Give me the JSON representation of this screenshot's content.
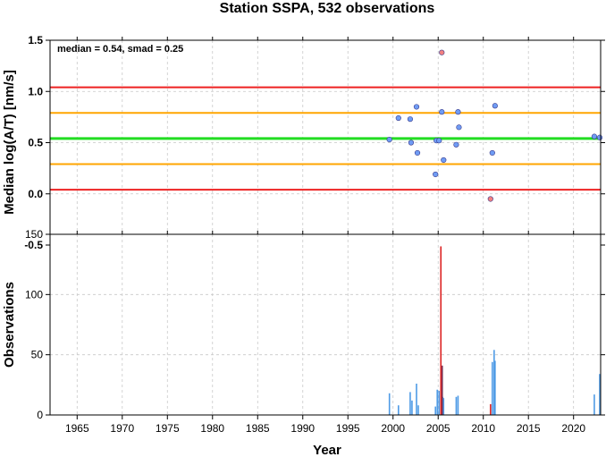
{
  "chart_data": [
    {
      "type": "scatter",
      "title": "Station SSPA, 532 observations",
      "xlabel": "",
      "ylabel": "Median log(A/T) [nm/s]",
      "xlim": [
        1962,
        2023
      ],
      "ylim": [
        -0.5,
        1.5
      ],
      "annotation": "median = 0.54, smad = 0.25",
      "grid": true,
      "yticks": [
        "-0.5",
        "0.0",
        "0.5",
        "1.0",
        "1.5"
      ],
      "reference_lines": [
        {
          "y": 1.04,
          "color": "#ee2222"
        },
        {
          "y": 0.79,
          "color": "#ffa500"
        },
        {
          "y": 0.54,
          "color": "#22dd22"
        },
        {
          "y": 0.29,
          "color": "#ffa500"
        },
        {
          "y": 0.04,
          "color": "#ee2222"
        }
      ],
      "series": [
        {
          "color": "#6f9cf4",
          "points": [
            [
              1999.6,
              0.53
            ],
            [
              2000.6,
              0.74
            ],
            [
              2001.9,
              0.73
            ],
            [
              2002.0,
              0.5
            ],
            [
              2002.6,
              0.85
            ],
            [
              2002.7,
              0.4
            ],
            [
              2004.8,
              0.52
            ],
            [
              2004.7,
              0.19
            ],
            [
              2005.1,
              0.52
            ],
            [
              2005.4,
              0.8
            ],
            [
              2005.6,
              0.33
            ],
            [
              2007.0,
              0.48
            ],
            [
              2007.2,
              0.8
            ],
            [
              2007.3,
              0.65
            ],
            [
              2011.0,
              0.4
            ],
            [
              2011.3,
              0.86
            ],
            [
              2022.3,
              0.56
            ],
            [
              2022.9,
              0.55
            ]
          ]
        },
        {
          "color": "#f28080",
          "points": [
            [
              2005.4,
              1.38
            ],
            [
              2010.8,
              -0.05
            ]
          ]
        }
      ]
    },
    {
      "type": "bar",
      "title": "",
      "xlabel": "Year",
      "ylabel": "Observations",
      "xlim": [
        1962,
        2023
      ],
      "ylim": [
        0,
        150
      ],
      "grid": true,
      "xticks": [
        "1965",
        "1970",
        "1975",
        "1980",
        "1985",
        "1990",
        "1995",
        "2000",
        "2005",
        "2010",
        "2015",
        "2020"
      ],
      "yticks": [
        "0",
        "50",
        "100",
        "150"
      ],
      "series": [
        {
          "color": "#4f9be6",
          "bars": [
            [
              1999.6,
              18
            ],
            [
              2000.6,
              8
            ],
            [
              2001.9,
              19
            ],
            [
              2002.1,
              12
            ],
            [
              2002.6,
              26
            ],
            [
              2002.8,
              8
            ],
            [
              2004.7,
              7
            ],
            [
              2004.9,
              21
            ],
            [
              2005.1,
              20
            ],
            [
              2005.5,
              15
            ],
            [
              2005.6,
              14
            ],
            [
              2007.0,
              15
            ],
            [
              2007.2,
              16
            ],
            [
              2011.0,
              44
            ],
            [
              2011.2,
              54
            ],
            [
              2011.3,
              45
            ],
            [
              2022.3,
              17
            ],
            [
              2022.9,
              34
            ]
          ]
        },
        {
          "color": "#dd2222",
          "bars": [
            [
              2005.3,
              140
            ],
            [
              2010.8,
              9
            ]
          ]
        },
        {
          "color": "#7a3355",
          "bars": [
            [
              2005.45,
              41
            ]
          ]
        }
      ]
    }
  ]
}
